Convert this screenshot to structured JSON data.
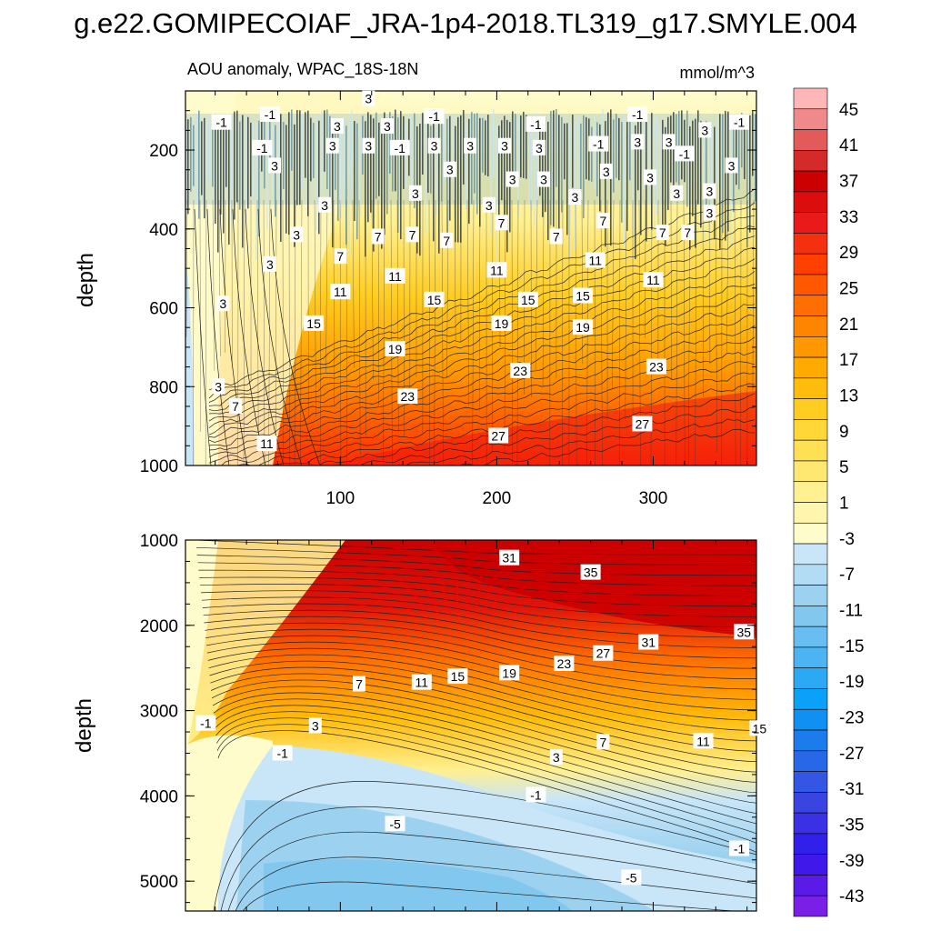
{
  "title": "g.e22.GOMIPECOIAF_JRA-1p4-2018.TL319_g17.SMYLE.004",
  "chart_data": [
    {
      "type": "contour",
      "panel": "top",
      "subtitle_left": "AOU anomaly, WPAC_18S-18N",
      "subtitle_right": "mmol/m^3",
      "ylabel": "depth",
      "xlabel": "",
      "xlim": [
        1,
        366
      ],
      "ylim": [
        1000,
        50
      ],
      "y_inverted": true,
      "xticks": [
        100,
        200,
        300
      ],
      "yticks": [
        200,
        400,
        600,
        800,
        1000
      ],
      "contour_labels": [
        {
          "x": 24,
          "y": 130,
          "text": "-1"
        },
        {
          "x": 55,
          "y": 110,
          "text": "-1"
        },
        {
          "x": 50,
          "y": 195,
          "text": "-1"
        },
        {
          "x": 58,
          "y": 240,
          "text": "3"
        },
        {
          "x": 118,
          "y": 70,
          "text": "3"
        },
        {
          "x": 98,
          "y": 140,
          "text": "3"
        },
        {
          "x": 130,
          "y": 140,
          "text": "3"
        },
        {
          "x": 160,
          "y": 115,
          "text": "-1"
        },
        {
          "x": 95,
          "y": 190,
          "text": "3"
        },
        {
          "x": 118,
          "y": 190,
          "text": "3"
        },
        {
          "x": 138,
          "y": 195,
          "text": "-1"
        },
        {
          "x": 160,
          "y": 190,
          "text": "3"
        },
        {
          "x": 183,
          "y": 190,
          "text": "3"
        },
        {
          "x": 205,
          "y": 190,
          "text": "3"
        },
        {
          "x": 225,
          "y": 135,
          "text": "-1"
        },
        {
          "x": 227,
          "y": 195,
          "text": "3"
        },
        {
          "x": 265,
          "y": 185,
          "text": "-1"
        },
        {
          "x": 290,
          "y": 110,
          "text": "-1"
        },
        {
          "x": 290,
          "y": 180,
          "text": "3"
        },
        {
          "x": 310,
          "y": 180,
          "text": "3"
        },
        {
          "x": 333,
          "y": 150,
          "text": "3"
        },
        {
          "x": 355,
          "y": 130,
          "text": "-1"
        },
        {
          "x": 320,
          "y": 210,
          "text": "-1"
        },
        {
          "x": 350,
          "y": 240,
          "text": "3"
        },
        {
          "x": 170,
          "y": 250,
          "text": "3"
        },
        {
          "x": 148,
          "y": 310,
          "text": "3"
        },
        {
          "x": 210,
          "y": 275,
          "text": "3"
        },
        {
          "x": 230,
          "y": 275,
          "text": "3"
        },
        {
          "x": 250,
          "y": 320,
          "text": "3"
        },
        {
          "x": 270,
          "y": 255,
          "text": "3"
        },
        {
          "x": 298,
          "y": 270,
          "text": "3"
        },
        {
          "x": 315,
          "y": 310,
          "text": "3"
        },
        {
          "x": 336,
          "y": 305,
          "text": "3"
        },
        {
          "x": 90,
          "y": 340,
          "text": "3"
        },
        {
          "x": 195,
          "y": 340,
          "text": "3"
        },
        {
          "x": 336,
          "y": 360,
          "text": "3"
        },
        {
          "x": 72,
          "y": 415,
          "text": "3"
        },
        {
          "x": 55,
          "y": 490,
          "text": "3"
        },
        {
          "x": 25,
          "y": 590,
          "text": "3"
        },
        {
          "x": 22,
          "y": 800,
          "text": "3"
        },
        {
          "x": 33,
          "y": 850,
          "text": "7"
        },
        {
          "x": 53,
          "y": 945,
          "text": "11"
        },
        {
          "x": 124,
          "y": 420,
          "text": "7"
        },
        {
          "x": 146,
          "y": 415,
          "text": "7"
        },
        {
          "x": 168,
          "y": 430,
          "text": "7"
        },
        {
          "x": 203,
          "y": 385,
          "text": "7"
        },
        {
          "x": 238,
          "y": 420,
          "text": "7"
        },
        {
          "x": 268,
          "y": 380,
          "text": "7"
        },
        {
          "x": 306,
          "y": 410,
          "text": "7"
        },
        {
          "x": 322,
          "y": 410,
          "text": "7"
        },
        {
          "x": 100,
          "y": 470,
          "text": "7"
        },
        {
          "x": 135,
          "y": 520,
          "text": "11"
        },
        {
          "x": 200,
          "y": 505,
          "text": "11"
        },
        {
          "x": 263,
          "y": 480,
          "text": "11"
        },
        {
          "x": 300,
          "y": 530,
          "text": "11"
        },
        {
          "x": 100,
          "y": 560,
          "text": "11"
        },
        {
          "x": 160,
          "y": 580,
          "text": "15"
        },
        {
          "x": 220,
          "y": 580,
          "text": "15"
        },
        {
          "x": 255,
          "y": 570,
          "text": "15"
        },
        {
          "x": 83,
          "y": 640,
          "text": "15"
        },
        {
          "x": 203,
          "y": 640,
          "text": "19"
        },
        {
          "x": 255,
          "y": 650,
          "text": "19"
        },
        {
          "x": 135,
          "y": 705,
          "text": "19"
        },
        {
          "x": 215,
          "y": 760,
          "text": "23"
        },
        {
          "x": 302,
          "y": 750,
          "text": "23"
        },
        {
          "x": 143,
          "y": 825,
          "text": "23"
        },
        {
          "x": 293,
          "y": 895,
          "text": "27"
        },
        {
          "x": 201,
          "y": 925,
          "text": "27"
        }
      ]
    },
    {
      "type": "contour",
      "panel": "bottom",
      "ylabel": "depth",
      "xlim": [
        1,
        366
      ],
      "ylim": [
        5350,
        1000
      ],
      "y_inverted": true,
      "yticks": [
        1000,
        2000,
        3000,
        4000,
        5000
      ],
      "contour_labels": [
        {
          "x": 84,
          "y": 3180,
          "text": "3"
        },
        {
          "x": 63,
          "y": 3500,
          "text": "-1"
        },
        {
          "x": 14,
          "y": 3150,
          "text": "-1"
        },
        {
          "x": 112,
          "y": 2690,
          "text": "7"
        },
        {
          "x": 152,
          "y": 2670,
          "text": "11"
        },
        {
          "x": 175,
          "y": 2600,
          "text": "15"
        },
        {
          "x": 208,
          "y": 2560,
          "text": "19"
        },
        {
          "x": 243,
          "y": 2450,
          "text": "23"
        },
        {
          "x": 268,
          "y": 2330,
          "text": "27"
        },
        {
          "x": 297,
          "y": 2200,
          "text": "31"
        },
        {
          "x": 208,
          "y": 1210,
          "text": "31"
        },
        {
          "x": 260,
          "y": 1380,
          "text": "35"
        },
        {
          "x": 358,
          "y": 2080,
          "text": "35"
        },
        {
          "x": 238,
          "y": 3550,
          "text": "3"
        },
        {
          "x": 268,
          "y": 3370,
          "text": "7"
        },
        {
          "x": 332,
          "y": 3360,
          "text": "11"
        },
        {
          "x": 368,
          "y": 3210,
          "text": "15"
        },
        {
          "x": 225,
          "y": 3990,
          "text": "-1"
        },
        {
          "x": 135,
          "y": 4330,
          "text": "-5"
        },
        {
          "x": 355,
          "y": 4620,
          "text": "-1"
        },
        {
          "x": 286,
          "y": 4960,
          "text": "-5"
        }
      ]
    }
  ],
  "colorbar": {
    "labels": [
      "45",
      "41",
      "37",
      "33",
      "29",
      "25",
      "21",
      "17",
      "13",
      "9",
      "5",
      "1",
      "-3",
      "-7",
      "-11",
      "-15",
      "-19",
      "-23",
      "-27",
      "-31",
      "-35",
      "-39",
      "-43"
    ],
    "colors": [
      "#ffb6b6",
      "#f08a8a",
      "#e35a5a",
      "#d42a2a",
      "#cc0000",
      "#dc0d0d",
      "#ea1a1a",
      "#f53010",
      "#ff4000",
      "#ff5800",
      "#ff6e00",
      "#ff8400",
      "#ff9800",
      "#ffaa00",
      "#ffbc0a",
      "#ffcc20",
      "#ffd838",
      "#ffe055",
      "#ffe872",
      "#fff090",
      "#fff6ae",
      "#fffccc",
      "#c8e6f8",
      "#b2dcf4",
      "#9cd2f0",
      "#82c8ee",
      "#68bef0",
      "#4cb4f2",
      "#2aaaf4",
      "#0aa2f8",
      "#1090f2",
      "#1c7cec",
      "#2868e8",
      "#3456e4",
      "#3a44e0",
      "#3a30e6",
      "#3020ea",
      "#4018ea",
      "#5a1ae8",
      "#7a20e6"
    ]
  },
  "icons": {
    "contour-fill": "ncl-temp-diff-colormap"
  }
}
